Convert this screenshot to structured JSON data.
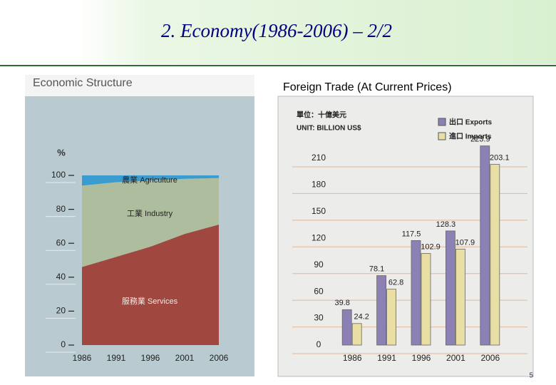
{
  "title": "2. Economy(1986-2006) – 2/2",
  "page_number": "5",
  "chart_data": [
    {
      "type": "stacked_area",
      "title": "Economic Structure",
      "y_label": "%",
      "categories": [
        "1986",
        "1991",
        "1996",
        "2001",
        "2006"
      ],
      "series": [
        {
          "name": "服務業 Services",
          "color": "#a0473f",
          "values": [
            46,
            52,
            58,
            65.5,
            71
          ]
        },
        {
          "name": "工業 Industry",
          "color": "#aebd9e",
          "values": [
            48,
            44,
            39,
            32.5,
            27.5
          ]
        },
        {
          "name": "農業 Agriculture",
          "color": "#3a9bd0",
          "values": [
            6,
            4,
            3,
            2,
            1.5
          ]
        }
      ],
      "ylim": [
        0,
        100
      ],
      "yticks": [
        0,
        20,
        40,
        60,
        80,
        100
      ]
    },
    {
      "type": "bar",
      "title": "Foreign Trade (At Current Prices)",
      "unit": [
        "單位：十億美元",
        "UNIT: BILLION US$"
      ],
      "categories": [
        "1986",
        "1991",
        "1996",
        "2001",
        "2006"
      ],
      "series": [
        {
          "name": "出口 Exports",
          "color": "#8c80b4",
          "values": [
            39.8,
            78.1,
            117.5,
            128.3,
            223.9
          ]
        },
        {
          "name": "進口 Imports",
          "color": "#e9dea4",
          "values": [
            24.2,
            62.8,
            102.9,
            107.9,
            203.1
          ]
        }
      ],
      "ylim": [
        0,
        230
      ],
      "yticks": [
        0,
        30,
        60,
        90,
        120,
        150,
        180,
        210
      ],
      "grid": true,
      "legend": "top-right"
    }
  ]
}
